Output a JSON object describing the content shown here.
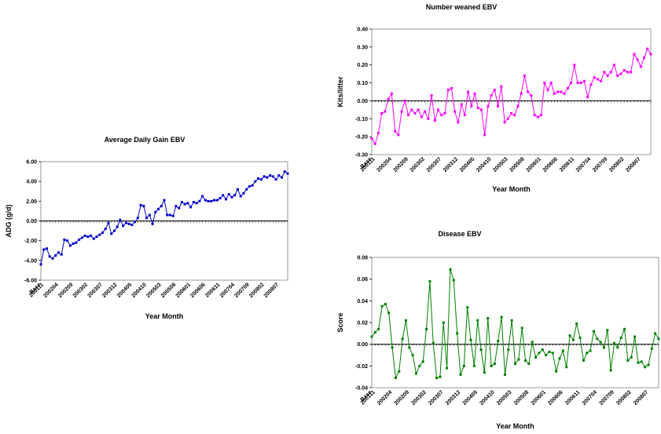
{
  "chart_data": [
    {
      "type": "line",
      "title": "Average Daily Gain EBV",
      "x_label": "Year Month",
      "y_label": "ADG (g/d)",
      "categories": [
        "Base",
        "200111",
        null,
        null,
        null,
        null,
        "200204",
        null,
        null,
        null,
        null,
        "200209",
        null,
        null,
        null,
        null,
        "200302",
        null,
        null,
        null,
        null,
        "200307",
        null,
        null,
        null,
        null,
        "200312",
        null,
        null,
        null,
        null,
        "200405",
        null,
        null,
        null,
        null,
        "200410",
        null,
        null,
        null,
        null,
        "200503",
        null,
        null,
        null,
        null,
        "200508",
        null,
        null,
        null,
        null,
        "200601",
        null,
        null,
        null,
        null,
        "200606",
        null,
        null,
        null,
        null,
        "200611",
        null,
        null,
        null,
        null,
        "200704",
        null,
        null,
        null,
        null,
        "200709",
        null,
        null,
        null,
        null,
        "200802",
        null,
        null,
        null,
        null,
        "200807",
        null,
        null,
        null
      ],
      "series": [
        {
          "color": "#0000cc",
          "values": [
            -4.4,
            -2.9,
            -2.8,
            -3.6,
            -3.8,
            -3.5,
            -3.2,
            -3.4,
            -1.9,
            -2.0,
            -2.5,
            -2.3,
            -2.2,
            -1.9,
            -1.7,
            -1.5,
            -1.6,
            -1.5,
            -1.8,
            -1.6,
            -1.4,
            -1.2,
            -0.8,
            -0.2,
            -1.3,
            -1.0,
            -0.6,
            0.1,
            -0.5,
            -0.2,
            -0.3,
            -0.4,
            -0.1,
            0.3,
            1.6,
            1.5,
            0.3,
            0.6,
            -0.3,
            0.9,
            1.2,
            1.5,
            2.1,
            0.6,
            0.6,
            0.5,
            1.5,
            1.3,
            1.9,
            1.7,
            1.8,
            1.4,
            1.9,
            1.8,
            2.0,
            2.5,
            2.1,
            2.0,
            2.0,
            2.1,
            2.1,
            2.3,
            2.6,
            2.2,
            2.7,
            2.4,
            2.6,
            3.2,
            2.5,
            2.8,
            3.2,
            3.5,
            3.6,
            4.0,
            4.3,
            4.2,
            4.5,
            4.4,
            4.6,
            4.5,
            4.2,
            4.6,
            4.4,
            5.0,
            4.8
          ]
        }
      ],
      "ylim": [
        -6,
        6
      ],
      "yticks": [
        {
          "value": -6,
          "label": "-6.00"
        },
        {
          "value": -4,
          "label": "-4.00"
        },
        {
          "value": -2,
          "label": "-2.00"
        },
        {
          "value": 0,
          "label": "0.00"
        },
        {
          "value": 2,
          "label": "2.00"
        },
        {
          "value": 4,
          "label": "4.00"
        },
        {
          "value": 6,
          "label": "6.00"
        }
      ]
    },
    {
      "type": "line",
      "title": "Number weaned EBV",
      "x_label": "Year Month",
      "y_label": "Kits/litter",
      "categories": [
        "Base",
        "200111",
        null,
        null,
        null,
        null,
        "200204",
        null,
        null,
        null,
        null,
        "200209",
        null,
        null,
        null,
        null,
        "200302",
        null,
        null,
        null,
        null,
        "200307",
        null,
        null,
        null,
        null,
        "200312",
        null,
        null,
        null,
        null,
        "200405",
        null,
        null,
        null,
        null,
        "200410",
        null,
        null,
        null,
        null,
        "200503",
        null,
        null,
        null,
        null,
        "200508",
        null,
        null,
        null,
        null,
        "200601",
        null,
        null,
        null,
        null,
        "200606",
        null,
        null,
        null,
        null,
        "200611",
        null,
        null,
        null,
        null,
        "200704",
        null,
        null,
        null,
        null,
        "200709",
        null,
        null,
        null,
        null,
        "200802",
        null,
        null,
        null,
        null,
        "200807",
        null,
        null,
        null
      ],
      "series": [
        {
          "color": "#ff00ff",
          "values": [
            -0.21,
            -0.24,
            -0.18,
            -0.07,
            -0.06,
            0.01,
            0.04,
            -0.17,
            -0.19,
            -0.06,
            0.0,
            -0.08,
            -0.05,
            -0.07,
            -0.05,
            -0.09,
            -0.06,
            -0.1,
            0.03,
            -0.11,
            -0.05,
            -0.08,
            -0.07,
            0.06,
            0.07,
            -0.06,
            -0.12,
            -0.02,
            -0.08,
            0.05,
            -0.03,
            0.04,
            -0.04,
            -0.05,
            -0.19,
            -0.03,
            0.03,
            0.06,
            -0.03,
            0.08,
            -0.12,
            -0.1,
            -0.07,
            -0.08,
            -0.03,
            0.04,
            0.14,
            0.05,
            0.03,
            -0.08,
            -0.09,
            -0.08,
            0.1,
            0.06,
            0.1,
            0.04,
            0.05,
            0.05,
            0.04,
            0.07,
            0.1,
            0.2,
            0.1,
            0.1,
            0.11,
            0.02,
            0.09,
            0.13,
            0.12,
            0.11,
            0.16,
            0.14,
            0.16,
            0.2,
            0.14,
            0.15,
            0.17,
            0.16,
            0.16,
            0.26,
            0.23,
            0.19,
            0.24,
            0.29,
            0.26
          ]
        }
      ],
      "ylim": [
        -0.3,
        0.4
      ],
      "yticks": [
        {
          "value": -0.3,
          "label": "-0.30"
        },
        {
          "value": -0.2,
          "label": "-0.20"
        },
        {
          "value": -0.1,
          "label": "-0.10"
        },
        {
          "value": 0,
          "label": "0.00"
        },
        {
          "value": 0.1,
          "label": "0.10"
        },
        {
          "value": 0.2,
          "label": "0.20"
        },
        {
          "value": 0.3,
          "label": "0.30"
        },
        {
          "value": 0.4,
          "label": "0.40"
        }
      ]
    },
    {
      "type": "line",
      "title": "Disease EBV",
      "x_label": "Year Month",
      "y_label": "Score",
      "categories": [
        "Base",
        "200111",
        null,
        null,
        null,
        null,
        "200204",
        null,
        null,
        null,
        null,
        "200209",
        null,
        null,
        null,
        null,
        "200302",
        null,
        null,
        null,
        null,
        "200307",
        null,
        null,
        null,
        null,
        "200312",
        null,
        null,
        null,
        null,
        "200405",
        null,
        null,
        null,
        null,
        "200410",
        null,
        null,
        null,
        null,
        "200503",
        null,
        null,
        null,
        null,
        "200508",
        null,
        null,
        null,
        null,
        "200601",
        null,
        null,
        null,
        null,
        "200606",
        null,
        null,
        null,
        null,
        "200611",
        null,
        null,
        null,
        null,
        "200704",
        null,
        null,
        null,
        null,
        "200709",
        null,
        null,
        null,
        null,
        "200802",
        null,
        null,
        null,
        null,
        "200807",
        null,
        null,
        null
      ],
      "series": [
        {
          "color": "#008000",
          "values": [
            0.007,
            0.011,
            0.014,
            0.035,
            0.037,
            0.029,
            -0.003,
            -0.031,
            -0.025,
            0.005,
            0.022,
            -0.003,
            -0.01,
            -0.027,
            -0.02,
            -0.016,
            0.014,
            0.058,
            0.001,
            -0.031,
            -0.03,
            0.02,
            -0.022,
            0.069,
            0.059,
            0.01,
            -0.028,
            -0.02,
            0.034,
            0.004,
            -0.02,
            0.022,
            -0.005,
            -0.026,
            0.024,
            -0.02,
            -0.018,
            0.003,
            0.025,
            -0.028,
            -0.005,
            0.022,
            -0.018,
            -0.014,
            0.015,
            -0.015,
            -0.018,
            0.002,
            -0.012,
            -0.008,
            -0.005,
            -0.01,
            -0.007,
            -0.008,
            -0.025,
            -0.013,
            -0.006,
            -0.021,
            0.008,
            0.004,
            0.019,
            0.006,
            -0.015,
            -0.008,
            -0.006,
            0.012,
            0.005,
            0.002,
            -0.003,
            0.013,
            -0.024,
            0.001,
            -0.003,
            0.006,
            0.014,
            -0.015,
            -0.012,
            0.007,
            -0.017,
            -0.016,
            -0.021,
            -0.019,
            -0.004,
            0.01,
            0.005
          ]
        }
      ],
      "ylim": [
        -0.04,
        0.08
      ],
      "yticks": [
        {
          "value": -0.04,
          "label": "-0.04"
        },
        {
          "value": -0.02,
          "label": "-0.02"
        },
        {
          "value": 0,
          "label": "0.00"
        },
        {
          "value": 0.02,
          "label": "0.02"
        },
        {
          "value": 0.04,
          "label": "0.04"
        },
        {
          "value": 0.06,
          "label": "0.06"
        },
        {
          "value": 0.08,
          "label": "0.08"
        }
      ]
    }
  ]
}
